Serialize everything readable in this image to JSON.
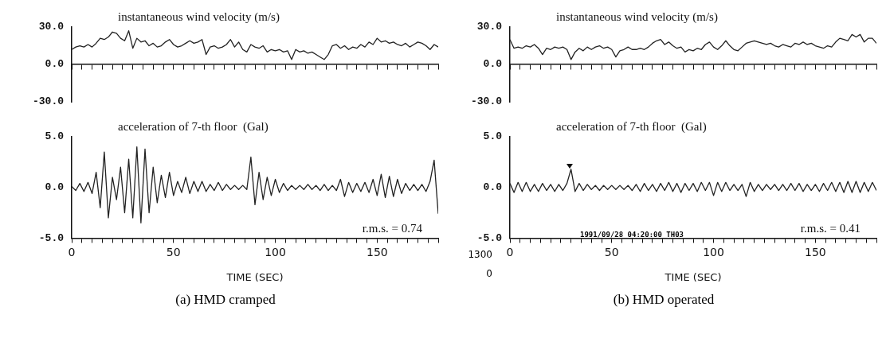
{
  "chart_data": [
    {
      "type": "line",
      "title": "instantaneous wind velocity (m/s)",
      "marker": "none",
      "legend": false,
      "tick_labels": "y",
      "xlim": [
        0,
        180
      ],
      "ylim": [
        -30,
        30
      ],
      "yticks": [
        {
          "value": 30,
          "label": "30.0"
        },
        {
          "value": 0,
          "label": "0.0"
        },
        {
          "value": -30,
          "label": "-30.0"
        }
      ],
      "xticks": [
        {
          "value": 0,
          "label": null
        },
        {
          "value": 5,
          "label": null
        },
        {
          "value": 10,
          "label": null
        },
        {
          "value": 15,
          "label": null
        },
        {
          "value": 20,
          "label": null
        },
        {
          "value": 25,
          "label": null
        },
        {
          "value": 30,
          "label": null
        },
        {
          "value": 35,
          "label": null
        },
        {
          "value": 40,
          "label": null
        },
        {
          "value": 45,
          "label": null
        },
        {
          "value": 50,
          "label": null
        },
        {
          "value": 55,
          "label": null
        },
        {
          "value": 60,
          "label": null
        },
        {
          "value": 65,
          "label": null
        },
        {
          "value": 70,
          "label": null
        },
        {
          "value": 75,
          "label": null
        },
        {
          "value": 80,
          "label": null
        },
        {
          "value": 85,
          "label": null
        },
        {
          "value": 90,
          "label": null
        },
        {
          "value": 95,
          "label": null
        },
        {
          "value": 100,
          "label": null
        },
        {
          "value": 105,
          "label": null
        },
        {
          "value": 110,
          "label": null
        },
        {
          "value": 115,
          "label": null
        },
        {
          "value": 120,
          "label": null
        },
        {
          "value": 125,
          "label": null
        },
        {
          "value": 130,
          "label": null
        },
        {
          "value": 135,
          "label": null
        },
        {
          "value": 140,
          "label": null
        },
        {
          "value": 145,
          "label": null
        },
        {
          "value": 150,
          "label": null
        },
        {
          "value": 155,
          "label": null
        },
        {
          "value": 160,
          "label": null
        },
        {
          "value": 165,
          "label": null
        },
        {
          "value": 170,
          "label": null
        },
        {
          "value": 175,
          "label": null
        },
        {
          "value": 180,
          "label": null
        }
      ],
      "x": [
        0,
        2,
        4,
        6,
        8,
        10,
        12,
        14,
        16,
        18,
        20,
        22,
        24,
        26,
        28,
        30,
        32,
        34,
        36,
        38,
        40,
        42,
        44,
        46,
        48,
        50,
        52,
        54,
        56,
        58,
        60,
        62,
        64,
        66,
        68,
        70,
        72,
        74,
        76,
        78,
        80,
        82,
        84,
        86,
        88,
        90,
        92,
        94,
        96,
        98,
        100,
        102,
        104,
        106,
        108,
        110,
        112,
        114,
        116,
        118,
        120,
        122,
        124,
        126,
        128,
        130,
        132,
        134,
        136,
        138,
        140,
        142,
        144,
        146,
        148,
        150,
        152,
        154,
        156,
        158,
        160,
        162,
        164,
        166,
        168,
        170,
        172,
        174,
        176,
        178,
        180
      ],
      "series": [
        {
          "color": "#222222",
          "values": [
            12,
            14,
            15,
            14,
            16,
            14,
            17,
            21,
            20,
            22,
            26,
            25,
            21,
            19,
            27,
            13,
            21,
            18,
            19,
            15,
            17,
            14,
            15,
            18,
            20,
            16,
            14,
            15,
            17,
            19,
            17,
            18,
            20,
            8,
            14,
            15,
            13,
            14,
            16,
            20,
            14,
            18,
            12,
            10,
            16,
            14,
            13,
            15,
            10,
            12,
            11,
            12,
            10,
            11,
            4,
            12,
            10,
            11,
            9,
            10,
            8,
            6,
            4,
            8,
            15,
            16,
            13,
            15,
            12,
            14,
            13,
            16,
            14,
            18,
            16,
            21,
            18,
            19,
            17,
            18,
            16,
            15,
            17,
            14,
            16,
            18,
            17,
            15,
            12,
            16,
            14
          ]
        }
      ]
    },
    {
      "type": "line",
      "title": "acceleration of 7-th floor  (Gal)",
      "marker": "none",
      "legend": false,
      "xlabel": "TIME (SEC)",
      "annotations": [
        "r.m.s. = 0.74",
        "(a)  HMD cramped"
      ],
      "xlim": [
        0,
        180
      ],
      "ylim": [
        -5,
        5
      ],
      "yticks": [
        {
          "value": 5,
          "label": "5.0"
        },
        {
          "value": 0,
          "label": "0.0"
        },
        {
          "value": -5,
          "label": "-5.0"
        }
      ],
      "xticks": [
        0,
        {
          "value": 5,
          "label": null
        },
        {
          "value": 10,
          "label": null
        },
        {
          "value": 15,
          "label": null
        },
        {
          "value": 20,
          "label": null
        },
        {
          "value": 25,
          "label": null
        },
        {
          "value": 30,
          "label": null
        },
        {
          "value": 35,
          "label": null
        },
        {
          "value": 40,
          "label": null
        },
        {
          "value": 45,
          "label": null
        },
        50,
        {
          "value": 55,
          "label": null
        },
        {
          "value": 60,
          "label": null
        },
        {
          "value": 65,
          "label": null
        },
        {
          "value": 70,
          "label": null
        },
        {
          "value": 75,
          "label": null
        },
        {
          "value": 80,
          "label": null
        },
        {
          "value": 85,
          "label": null
        },
        {
          "value": 90,
          "label": null
        },
        {
          "value": 95,
          "label": null
        },
        100,
        {
          "value": 105,
          "label": null
        },
        {
          "value": 110,
          "label": null
        },
        {
          "value": 115,
          "label": null
        },
        {
          "value": 120,
          "label": null
        },
        {
          "value": 125,
          "label": null
        },
        {
          "value": 130,
          "label": null
        },
        {
          "value": 135,
          "label": null
        },
        {
          "value": 140,
          "label": null
        },
        {
          "value": 145,
          "label": null
        },
        150,
        {
          "value": 155,
          "label": null
        },
        {
          "value": 160,
          "label": null
        },
        {
          "value": 165,
          "label": null
        },
        {
          "value": 170,
          "label": null
        },
        {
          "value": 175,
          "label": null
        },
        {
          "value": 180,
          "label": null
        }
      ],
      "x": [
        0,
        2,
        4,
        6,
        8,
        10,
        12,
        14,
        16,
        18,
        20,
        22,
        24,
        26,
        28,
        30,
        32,
        34,
        36,
        38,
        40,
        42,
        44,
        46,
        48,
        50,
        52,
        54,
        56,
        58,
        60,
        62,
        64,
        66,
        68,
        70,
        72,
        74,
        76,
        78,
        80,
        82,
        84,
        86,
        88,
        90,
        92,
        94,
        96,
        98,
        100,
        102,
        104,
        106,
        108,
        110,
        112,
        114,
        116,
        118,
        120,
        122,
        124,
        126,
        128,
        130,
        132,
        134,
        136,
        138,
        140,
        142,
        144,
        146,
        148,
        150,
        152,
        154,
        156,
        158,
        160,
        162,
        164,
        166,
        168,
        170,
        172,
        174,
        176,
        178,
        180
      ],
      "series": [
        {
          "color": "#222222",
          "values": [
            0.1,
            -0.3,
            0.4,
            -0.4,
            0.5,
            -0.6,
            1.5,
            -2.0,
            3.5,
            -3.0,
            1.0,
            -1.2,
            2.0,
            -2.5,
            2.8,
            -3.0,
            4.0,
            -3.5,
            3.8,
            -2.5,
            2.0,
            -1.5,
            1.2,
            -1.0,
            1.5,
            -0.8,
            0.6,
            -0.5,
            1.0,
            -0.6,
            0.6,
            -0.4,
            0.6,
            -0.4,
            0.3,
            -0.3,
            0.5,
            -0.3,
            0.3,
            -0.2,
            0.2,
            -0.2,
            0.2,
            -0.2,
            3.0,
            -1.7,
            1.5,
            -1.2,
            1.0,
            -0.8,
            0.8,
            -0.5,
            0.4,
            -0.3,
            0.2,
            -0.2,
            0.2,
            -0.2,
            0.3,
            -0.2,
            0.2,
            -0.3,
            0.3,
            -0.3,
            0.2,
            -0.3,
            0.8,
            -0.9,
            0.5,
            -0.5,
            0.4,
            -0.4,
            0.5,
            -0.5,
            0.8,
            -0.8,
            1.3,
            -1.0,
            1.1,
            -0.9,
            0.8,
            -0.6,
            0.4,
            -0.3,
            0.3,
            -0.3,
            0.3,
            -0.4,
            0.6,
            2.7,
            -2.6
          ]
        }
      ]
    },
    {
      "type": "line",
      "title": "instantaneous wind velocity (m/s)",
      "marker": "none",
      "legend": false,
      "tick_labels": "y",
      "xlim": [
        0,
        180
      ],
      "ylim": [
        -30,
        30
      ],
      "yticks": [
        {
          "value": 30,
          "label": "30.0"
        },
        {
          "value": 0,
          "label": "0.0"
        },
        {
          "value": -30,
          "label": "-30.0"
        }
      ],
      "xticks": [
        {
          "value": 0,
          "label": null
        },
        {
          "value": 5,
          "label": null
        },
        {
          "value": 10,
          "label": null
        },
        {
          "value": 15,
          "label": null
        },
        {
          "value": 20,
          "label": null
        },
        {
          "value": 25,
          "label": null
        },
        {
          "value": 30,
          "label": null
        },
        {
          "value": 35,
          "label": null
        },
        {
          "value": 40,
          "label": null
        },
        {
          "value": 45,
          "label": null
        },
        {
          "value": 50,
          "label": null
        },
        {
          "value": 55,
          "label": null
        },
        {
          "value": 60,
          "label": null
        },
        {
          "value": 65,
          "label": null
        },
        {
          "value": 70,
          "label": null
        },
        {
          "value": 75,
          "label": null
        },
        {
          "value": 80,
          "label": null
        },
        {
          "value": 85,
          "label": null
        },
        {
          "value": 90,
          "label": null
        },
        {
          "value": 95,
          "label": null
        },
        {
          "value": 100,
          "label": null
        },
        {
          "value": 105,
          "label": null
        },
        {
          "value": 110,
          "label": null
        },
        {
          "value": 115,
          "label": null
        },
        {
          "value": 120,
          "label": null
        },
        {
          "value": 125,
          "label": null
        },
        {
          "value": 130,
          "label": null
        },
        {
          "value": 135,
          "label": null
        },
        {
          "value": 140,
          "label": null
        },
        {
          "value": 145,
          "label": null
        },
        {
          "value": 150,
          "label": null
        },
        {
          "value": 155,
          "label": null
        },
        {
          "value": 160,
          "label": null
        },
        {
          "value": 165,
          "label": null
        },
        {
          "value": 170,
          "label": null
        },
        {
          "value": 175,
          "label": null
        },
        {
          "value": 180,
          "label": null
        }
      ],
      "x": [
        0,
        2,
        4,
        6,
        8,
        10,
        12,
        14,
        16,
        18,
        20,
        22,
        24,
        26,
        28,
        30,
        32,
        34,
        36,
        38,
        40,
        42,
        44,
        46,
        48,
        50,
        52,
        54,
        56,
        58,
        60,
        62,
        64,
        66,
        68,
        70,
        72,
        74,
        76,
        78,
        80,
        82,
        84,
        86,
        88,
        90,
        92,
        94,
        96,
        98,
        100,
        102,
        104,
        106,
        108,
        110,
        112,
        114,
        116,
        118,
        120,
        122,
        124,
        126,
        128,
        130,
        132,
        134,
        136,
        138,
        140,
        142,
        144,
        146,
        148,
        150,
        152,
        154,
        156,
        158,
        160,
        162,
        164,
        166,
        168,
        170,
        172,
        174,
        176,
        178,
        180
      ],
      "series": [
        {
          "color": "#222222",
          "values": [
            20,
            13,
            14,
            13,
            15,
            14,
            16,
            13,
            8,
            13,
            12,
            14,
            13,
            14,
            12,
            4,
            10,
            13,
            11,
            14,
            12,
            14,
            15,
            13,
            14,
            12,
            6,
            11,
            12,
            14,
            12,
            12,
            13,
            12,
            14,
            17,
            19,
            20,
            16,
            18,
            15,
            13,
            14,
            10,
            12,
            11,
            13,
            12,
            16,
            18,
            14,
            12,
            15,
            19,
            15,
            12,
            11,
            14,
            17,
            18,
            19,
            18,
            17,
            16,
            17,
            15,
            14,
            16,
            15,
            14,
            17,
            16,
            18,
            16,
            17,
            15,
            14,
            13,
            15,
            14,
            18,
            21,
            20,
            19,
            24,
            22,
            24,
            18,
            21,
            21,
            17
          ]
        }
      ]
    },
    {
      "type": "line",
      "title": "acceleration of 7-th floor  (Gal)",
      "marker": "none",
      "legend": false,
      "xlabel": "TIME (SEC)",
      "annotations": [
        "r.m.s. = 0.41",
        "1991/09/28 04:20:00 TH03",
        "1300",
        "0",
        "(b)  HMD operated"
      ],
      "xlim": [
        0,
        180
      ],
      "ylim": [
        -5,
        5
      ],
      "yticks": [
        {
          "value": 5,
          "label": "5.0"
        },
        {
          "value": 0,
          "label": "0.0"
        },
        {
          "value": -5,
          "label": "-5.0"
        }
      ],
      "xticks": [
        0,
        {
          "value": 5,
          "label": null
        },
        {
          "value": 10,
          "label": null
        },
        {
          "value": 15,
          "label": null
        },
        {
          "value": 20,
          "label": null
        },
        {
          "value": 25,
          "label": null
        },
        {
          "value": 30,
          "label": null
        },
        {
          "value": 35,
          "label": null
        },
        {
          "value": 40,
          "label": null
        },
        {
          "value": 45,
          "label": null
        },
        50,
        {
          "value": 55,
          "label": null
        },
        {
          "value": 60,
          "label": null
        },
        {
          "value": 65,
          "label": null
        },
        {
          "value": 70,
          "label": null
        },
        {
          "value": 75,
          "label": null
        },
        {
          "value": 80,
          "label": null
        },
        {
          "value": 85,
          "label": null
        },
        {
          "value": 90,
          "label": null
        },
        {
          "value": 95,
          "label": null
        },
        100,
        {
          "value": 105,
          "label": null
        },
        {
          "value": 110,
          "label": null
        },
        {
          "value": 115,
          "label": null
        },
        {
          "value": 120,
          "label": null
        },
        {
          "value": 125,
          "label": null
        },
        {
          "value": 130,
          "label": null
        },
        {
          "value": 135,
          "label": null
        },
        {
          "value": 140,
          "label": null
        },
        {
          "value": 145,
          "label": null
        },
        150,
        {
          "value": 155,
          "label": null
        },
        {
          "value": 160,
          "label": null
        },
        {
          "value": 165,
          "label": null
        },
        {
          "value": 170,
          "label": null
        },
        {
          "value": 175,
          "label": null
        },
        {
          "value": 180,
          "label": null
        }
      ],
      "x": [
        0,
        2,
        4,
        6,
        8,
        10,
        12,
        14,
        16,
        18,
        20,
        22,
        24,
        26,
        28,
        30,
        32,
        34,
        36,
        38,
        40,
        42,
        44,
        46,
        48,
        50,
        52,
        54,
        56,
        58,
        60,
        62,
        64,
        66,
        68,
        70,
        72,
        74,
        76,
        78,
        80,
        82,
        84,
        86,
        88,
        90,
        92,
        94,
        96,
        98,
        100,
        102,
        104,
        106,
        108,
        110,
        112,
        114,
        116,
        118,
        120,
        122,
        124,
        126,
        128,
        130,
        132,
        134,
        136,
        138,
        140,
        142,
        144,
        146,
        148,
        150,
        152,
        154,
        156,
        158,
        160,
        162,
        164,
        166,
        168,
        170,
        172,
        174,
        176,
        178,
        180
      ],
      "series": [
        {
          "color": "#222222",
          "values": [
            0.4,
            -0.5,
            0.5,
            -0.4,
            0.5,
            -0.4,
            0.3,
            -0.4,
            0.4,
            -0.3,
            0.3,
            -0.4,
            0.3,
            -0.3,
            0.4,
            1.8,
            -0.4,
            0.4,
            -0.3,
            0.3,
            -0.2,
            0.2,
            -0.3,
            0.2,
            -0.2,
            0.2,
            -0.2,
            0.2,
            -0.2,
            0.2,
            -0.3,
            0.3,
            -0.4,
            0.4,
            -0.3,
            0.3,
            -0.4,
            0.4,
            -0.3,
            0.5,
            -0.4,
            0.4,
            -0.5,
            0.4,
            -0.3,
            0.4,
            -0.4,
            0.5,
            -0.3,
            0.5,
            -0.8,
            0.5,
            -0.4,
            0.5,
            -0.3,
            0.3,
            -0.3,
            0.3,
            -0.9,
            0.5,
            -0.4,
            0.3,
            -0.3,
            0.3,
            -0.2,
            0.3,
            -0.3,
            0.3,
            -0.3,
            0.4,
            -0.3,
            0.4,
            -0.4,
            0.3,
            -0.3,
            0.3,
            -0.4,
            0.4,
            -0.3,
            0.5,
            -0.4,
            0.5,
            -0.5,
            0.6,
            -0.5,
            0.6,
            -0.5,
            0.5,
            -0.4,
            0.5,
            -0.3
          ]
        }
      ]
    }
  ]
}
